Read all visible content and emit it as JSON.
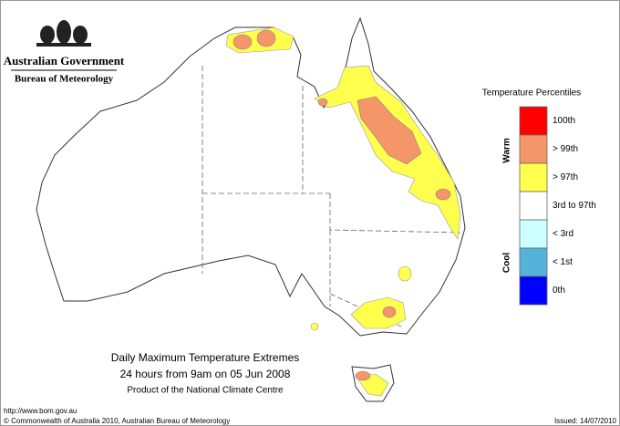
{
  "header": {
    "government": "Australian Government",
    "bureau": "Bureau of Meteorology"
  },
  "legend": {
    "title": "Temperature Percentiles",
    "warm": "Warm",
    "cool": "Cool",
    "items": [
      {
        "label": "100th",
        "color": "#ff0000"
      },
      {
        "label": "> 99th",
        "color": "#f4956a"
      },
      {
        "label": "> 97th",
        "color": "#ffff4d"
      },
      {
        "label": "3rd to 97th",
        "color": "#ffffff"
      },
      {
        "label": "< 3rd",
        "color": "#ccffff"
      },
      {
        "label": "< 1st",
        "color": "#55b3d9"
      },
      {
        "label": "0th",
        "color": "#0000ff"
      }
    ]
  },
  "caption": {
    "title": "Daily Maximum Temperature Extremes",
    "period": "24 hours from 9am on 05 Jun 2008",
    "product": "Product of the National Climate Centre"
  },
  "footer": {
    "url": "http://www.bom.gov.au",
    "copyright": "© Commonwealth of Australia 2010, Australian Bureau of Meteorology",
    "issued": "Issued: 14/07/2010"
  }
}
